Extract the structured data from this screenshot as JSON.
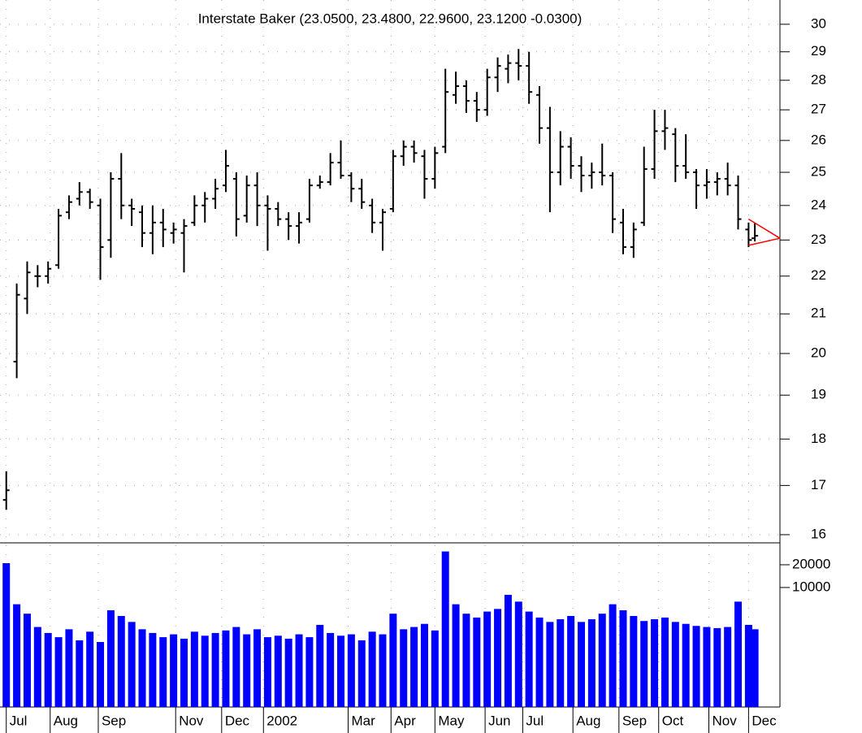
{
  "chart_data": {
    "type": "ohlc",
    "title": "Interstate Baker (23.0500, 23.4800, 22.9600, 23.1200 -0.0300)",
    "x": [
      0,
      5,
      10,
      15,
      20,
      25,
      30,
      35,
      40,
      45,
      50,
      55,
      60,
      65,
      70,
      75,
      80,
      85,
      90,
      95,
      100,
      105,
      110,
      115,
      120,
      125,
      130,
      135,
      140,
      145,
      150,
      155,
      160,
      165,
      170,
      175,
      180,
      185,
      190,
      195,
      200,
      205,
      210,
      215,
      220,
      225,
      230,
      235,
      240,
      245,
      250,
      255,
      260,
      265,
      270,
      275,
      280,
      285,
      290,
      295,
      300,
      305,
      310,
      315,
      320,
      325,
      330,
      335,
      340,
      345,
      350,
      355,
      358
    ],
    "open": [
      16.7,
      19.8,
      21.4,
      22.0,
      22.0,
      22.3,
      23.8,
      24.2,
      24.4,
      24.0,
      23.0,
      24.8,
      24.0,
      23.8,
      23.2,
      23.5,
      23.2,
      23.2,
      23.5,
      24.0,
      24.2,
      24.6,
      24.8,
      23.7,
      24.6,
      24.0,
      23.9,
      23.6,
      23.4,
      23.6,
      24.6,
      24.7,
      25.3,
      24.9,
      24.5,
      24.0,
      23.5,
      23.9,
      25.5,
      25.8,
      25.5,
      24.8,
      25.8,
      27.5,
      27.8,
      27.3,
      27.0,
      28.1,
      28.4,
      28.6,
      28.5,
      27.5,
      26.4,
      25.0,
      25.8,
      25.2,
      24.9,
      25.0,
      24.9,
      23.5,
      22.8,
      23.5,
      25.1,
      26.3,
      26.2,
      25.2,
      25.0,
      24.6,
      24.7,
      24.8,
      24.6,
      23.3,
      23.05
    ],
    "high": [
      17.3,
      21.8,
      22.4,
      22.3,
      22.4,
      23.9,
      24.3,
      24.7,
      24.5,
      24.2,
      25.0,
      25.6,
      24.2,
      24.0,
      24.0,
      23.9,
      23.5,
      23.6,
      24.3,
      24.4,
      24.8,
      25.7,
      25.0,
      24.9,
      25.0,
      24.3,
      24.1,
      23.8,
      23.8,
      24.8,
      24.9,
      25.6,
      26.0,
      25.0,
      24.8,
      24.2,
      23.9,
      25.7,
      26.0,
      26.0,
      25.7,
      25.8,
      28.4,
      28.3,
      28.0,
      27.6,
      28.4,
      28.8,
      28.9,
      29.1,
      29.0,
      27.8,
      27.1,
      26.3,
      26.1,
      25.5,
      25.3,
      25.9,
      25.0,
      23.9,
      23.5,
      25.8,
      27.0,
      27.0,
      26.4,
      26.2,
      25.1,
      25.1,
      25.0,
      25.3,
      24.9,
      23.5,
      23.48
    ],
    "low": [
      16.5,
      19.4,
      21.0,
      21.7,
      21.8,
      22.2,
      23.6,
      24.0,
      23.9,
      21.9,
      22.5,
      23.6,
      23.4,
      22.8,
      22.6,
      22.8,
      22.9,
      22.1,
      23.4,
      23.5,
      23.9,
      24.4,
      23.1,
      23.5,
      23.4,
      22.7,
      23.4,
      23.0,
      22.9,
      23.5,
      24.5,
      24.6,
      24.8,
      24.1,
      23.9,
      23.2,
      22.7,
      23.8,
      25.2,
      25.3,
      24.2,
      24.5,
      25.6,
      27.2,
      26.9,
      26.6,
      26.8,
      27.6,
      27.9,
      28.0,
      27.2,
      25.9,
      23.8,
      24.6,
      24.8,
      24.4,
      24.5,
      24.6,
      23.2,
      22.6,
      22.5,
      23.4,
      24.8,
      25.7,
      24.7,
      24.8,
      23.9,
      24.2,
      24.3,
      24.3,
      23.3,
      22.8,
      22.96
    ],
    "close": [
      16.9,
      21.5,
      22.1,
      22.0,
      22.2,
      23.7,
      24.1,
      24.4,
      24.1,
      22.8,
      24.8,
      24.0,
      23.9,
      23.2,
      23.5,
      23.3,
      23.3,
      23.4,
      24.0,
      24.2,
      24.5,
      25.2,
      23.6,
      24.6,
      24.0,
      23.9,
      23.6,
      23.4,
      23.5,
      24.6,
      24.7,
      25.3,
      24.9,
      24.5,
      24.1,
      23.5,
      23.8,
      25.5,
      25.8,
      25.6,
      24.8,
      25.6,
      27.6,
      27.8,
      27.3,
      27.0,
      28.1,
      28.5,
      28.6,
      28.5,
      27.6,
      26.4,
      25.0,
      25.8,
      25.2,
      24.9,
      25.0,
      24.9,
      23.6,
      22.8,
      23.3,
      25.1,
      26.3,
      26.4,
      25.2,
      25.0,
      24.6,
      24.7,
      24.8,
      24.6,
      23.6,
      23.0,
      23.12
    ],
    "color": "#000000",
    "xlim": [
      -3,
      370
    ],
    "xticks": [
      {
        "value": 0,
        "label": "Jul"
      },
      {
        "value": 21,
        "label": "Aug"
      },
      {
        "value": 44,
        "label": "Sep"
      },
      {
        "value": 81,
        "label": "Nov"
      },
      {
        "value": 103,
        "label": "Dec"
      },
      {
        "value": 123,
        "label": "2002"
      },
      {
        "value": 163.5,
        "label": "Mar"
      },
      {
        "value": 184,
        "label": "Apr"
      },
      {
        "value": 205,
        "label": "May"
      },
      {
        "value": 229,
        "label": "Jun"
      },
      {
        "value": 247,
        "label": "Jul"
      },
      {
        "value": 271,
        "label": "Aug"
      },
      {
        "value": 293,
        "label": "Sep"
      },
      {
        "value": 312,
        "label": "Oct"
      },
      {
        "value": 336,
        "label": "Nov"
      },
      {
        "value": 355,
        "label": "Dec"
      }
    ],
    "ylim": [
      15.84,
      30.91
    ],
    "yticks": [
      16,
      17,
      18,
      19,
      20,
      21,
      22,
      23,
      24,
      25,
      26,
      27,
      28,
      29,
      30
    ],
    "ylog": true,
    "grid": true,
    "volume": {
      "values": [
        21000,
        6000,
        4500,
        3000,
        2500,
        2200,
        2800,
        2000,
        2600,
        1900,
        5000,
        4200,
        3500,
        2800,
        2500,
        2200,
        2400,
        2100,
        2600,
        2300,
        2500,
        2700,
        3000,
        2400,
        2800,
        2200,
        2300,
        2100,
        2400,
        2200,
        3200,
        2500,
        2300,
        2400,
        2000,
        2600,
        2400,
        4500,
        2800,
        3000,
        3300,
        2700,
        30000,
        6000,
        4500,
        4000,
        4800,
        5200,
        8000,
        6500,
        4800,
        4000,
        3500,
        3800,
        4200,
        3500,
        3800,
        4500,
        6000,
        5000,
        4200,
        3600,
        3800,
        4000,
        3500,
        3300,
        3100,
        3000,
        2900,
        3000,
        6500,
        3200,
        2800
      ],
      "color": "#0000ff",
      "ylim": [
        262,
        39000
      ],
      "yticks": [
        20000,
        10000
      ],
      "log": true
    },
    "projection": {
      "color": "#ff0000",
      "lines": [
        [
          355,
          23.6,
          370,
          23.05
        ],
        [
          355,
          22.85,
          370,
          23.05
        ]
      ]
    }
  }
}
